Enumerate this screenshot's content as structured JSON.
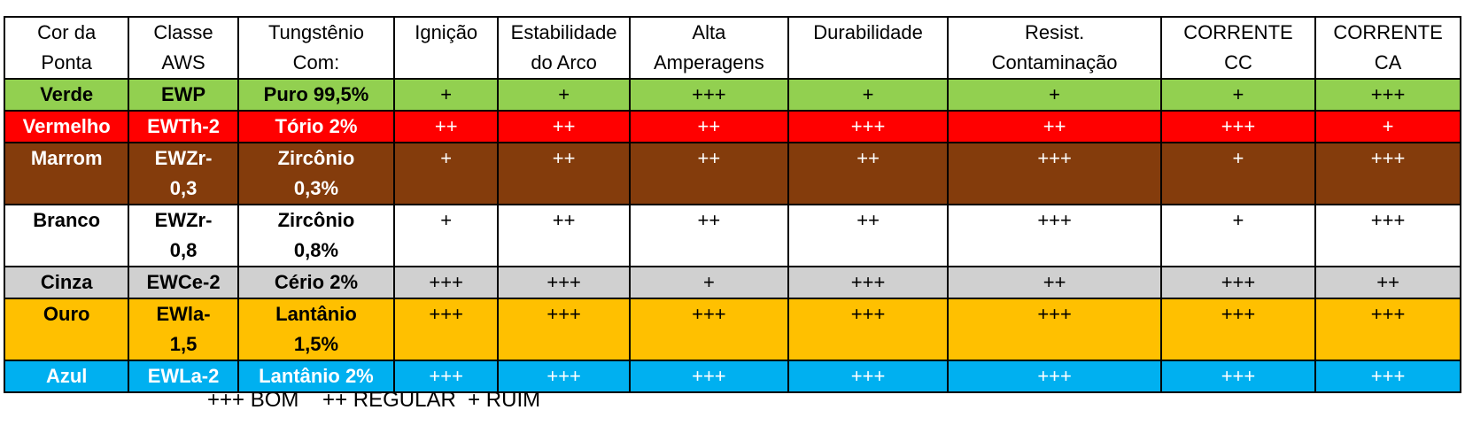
{
  "headers": [
    "Cor da\nPonta",
    "Classe\nAWS",
    "Tungstênio\nCom:",
    "Ignição",
    "Estabilidade\ndo Arco",
    "Alta\nAmperagens",
    "Durabilidade",
    "Resist.\nContaminação",
    "CORRENTE\nCC",
    "CORRENTE\nCA"
  ],
  "rows": [
    {
      "cells": [
        "Verde",
        "EWP",
        "Puro 99,5%",
        "+",
        "+",
        "+++",
        "+",
        "+",
        "+",
        "+++"
      ],
      "bg": "#92d050",
      "fg": "#000000"
    },
    {
      "cells": [
        "Vermelho",
        "EWTh-2",
        "Tório 2%",
        "++",
        "++",
        "++",
        "+++",
        "++",
        "+++",
        "+"
      ],
      "bg": "#ff0000",
      "fg": "#ffffff"
    },
    {
      "cells": [
        "Marrom",
        "EWZr-\n0,3",
        "Zircônio\n0,3%",
        "+",
        "++",
        "++",
        "++",
        "+++",
        "+",
        "+++"
      ],
      "bg": "#843c0c",
      "fg": "#ffffff"
    },
    {
      "cells": [
        "Branco",
        "EWZr-\n0,8",
        "Zircônio\n0,8%",
        "+",
        "++",
        "++",
        "++",
        "+++",
        "+",
        "+++"
      ],
      "bg": "#ffffff",
      "fg": "#000000"
    },
    {
      "cells": [
        "Cinza",
        "EWCe-2",
        "Cério 2%",
        "+++",
        "+++",
        "+",
        "+++",
        "++",
        "+++",
        "++"
      ],
      "bg": "#d0d0d0",
      "fg": "#000000"
    },
    {
      "cells": [
        "Ouro",
        "EWla-\n1,5",
        "Lantânio\n1,5%",
        "+++",
        "+++",
        "+++",
        "+++",
        "+++",
        "+++",
        "+++"
      ],
      "bg": "#ffc000",
      "fg": "#000000"
    },
    {
      "cells": [
        "Azul",
        "EWLa-2",
        "Lantânio 2%",
        "+++",
        "+++",
        "+++",
        "+++",
        "+++",
        "+++",
        "+++"
      ],
      "bg": "#00b0f0",
      "fg": "#ffffff"
    }
  ],
  "legend": "+++ BOM    ++ REGULAR  + RUIM"
}
